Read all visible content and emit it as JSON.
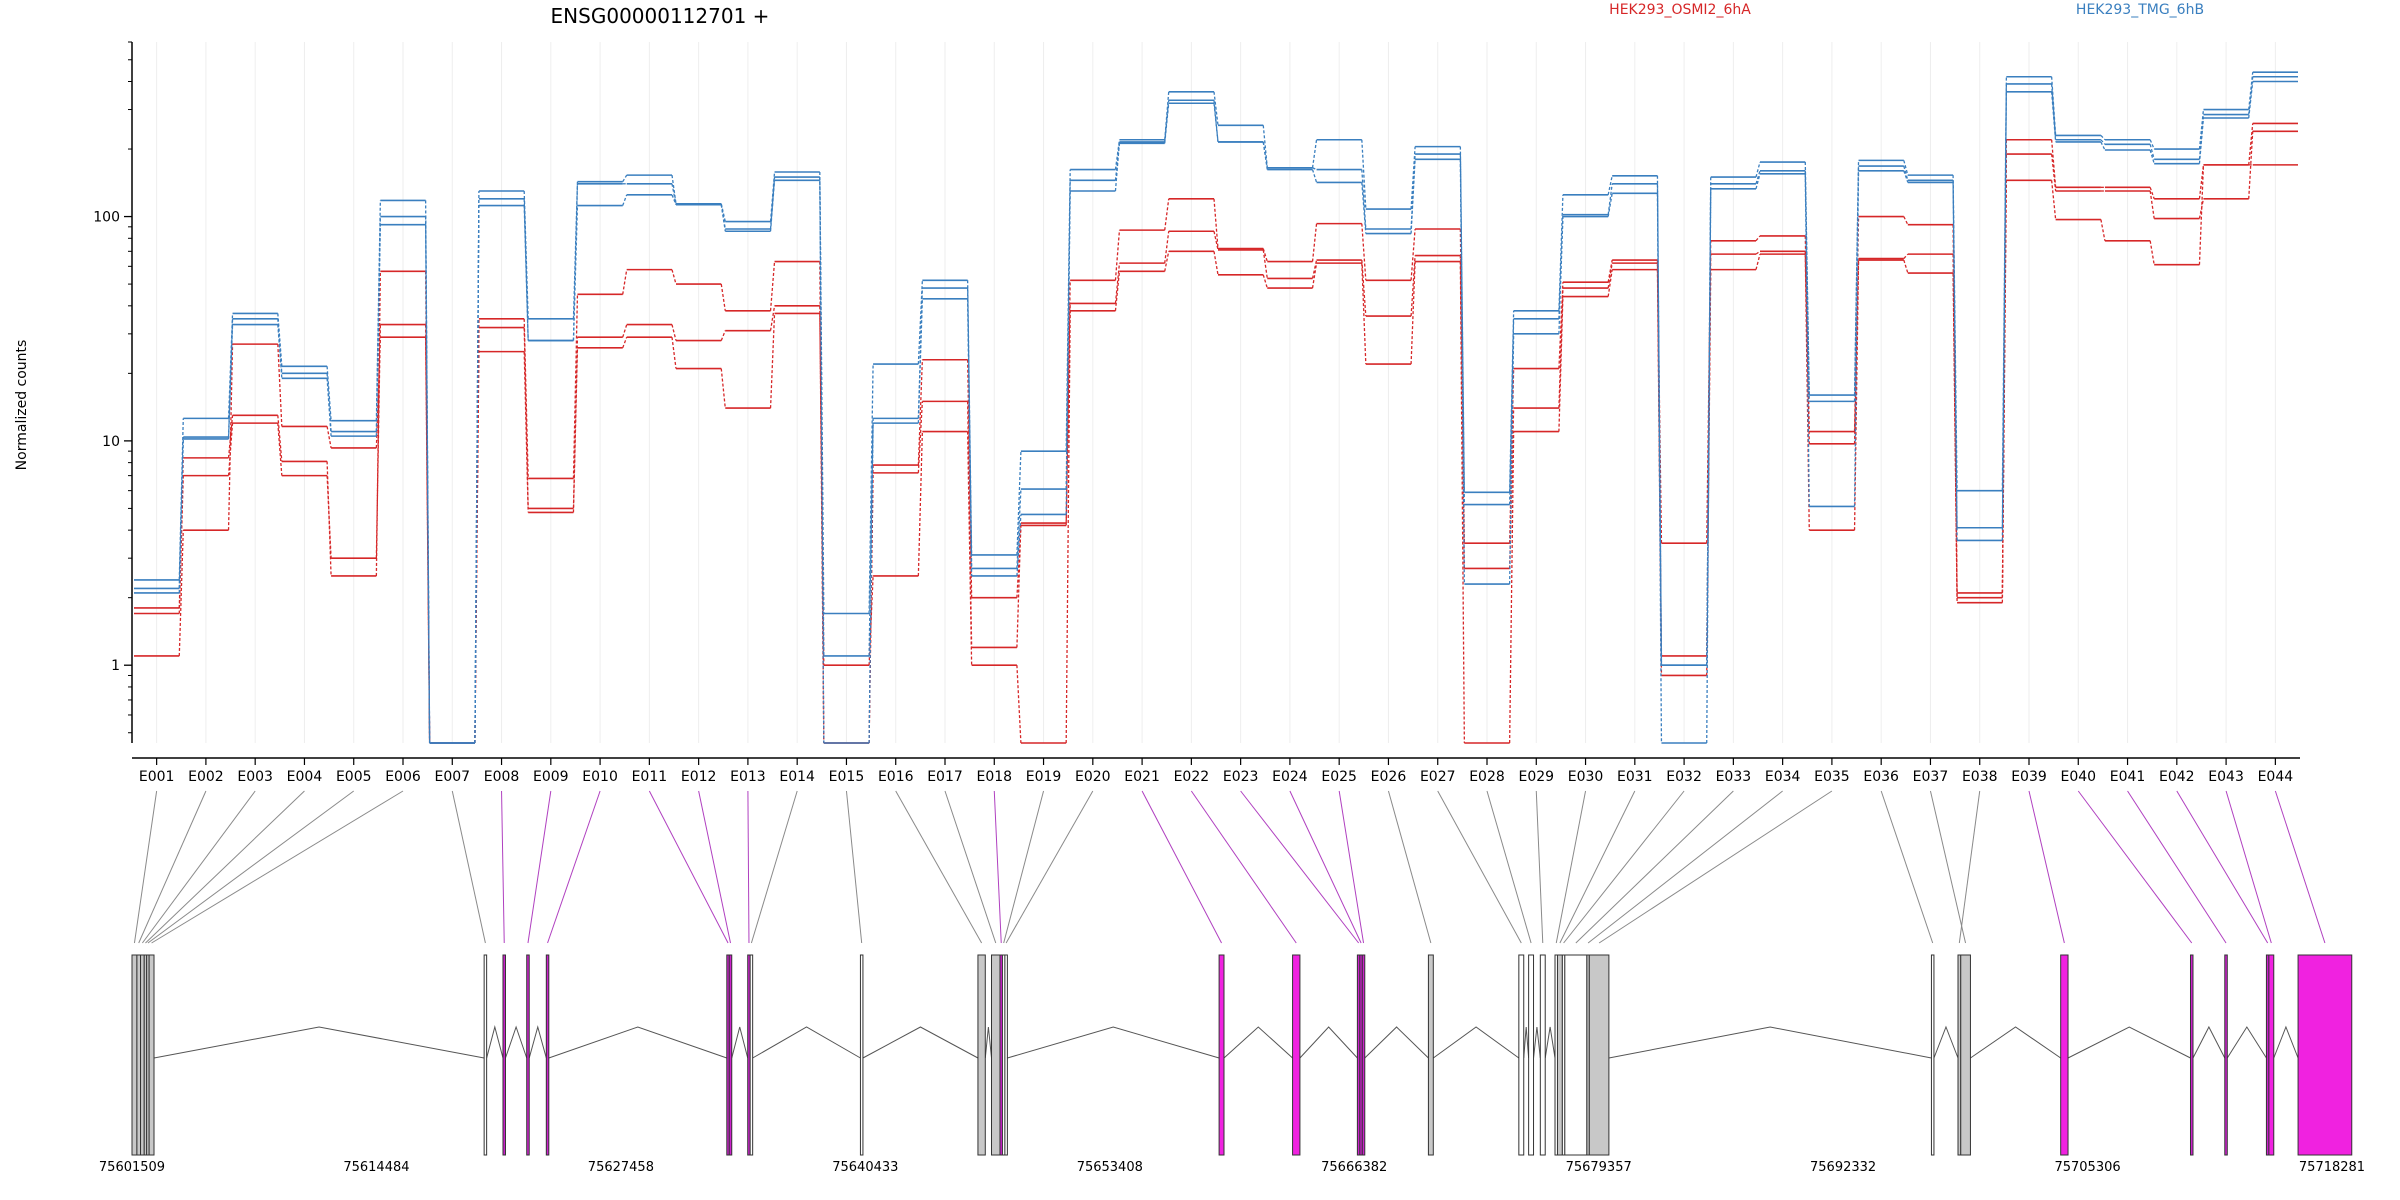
{
  "chart_data": {
    "type": "line",
    "title": "ENSG00000112701 +",
    "ylabel": "Normalized counts",
    "xlabel": "",
    "yscale": "log",
    "ylim": [
      0.45,
      600
    ],
    "yticks": [
      1,
      10,
      100
    ],
    "ytick_labels": [
      "1",
      "10",
      "100"
    ],
    "grid": "vertical",
    "legend": "top",
    "exons": [
      "E001",
      "E002",
      "E003",
      "E004",
      "E005",
      "E006",
      "E007",
      "E008",
      "E009",
      "E010",
      "E011",
      "E012",
      "E013",
      "E014",
      "E015",
      "E016",
      "E017",
      "E018",
      "E019",
      "E020",
      "E021",
      "E022",
      "E023",
      "E024",
      "E025",
      "E026",
      "E027",
      "E028",
      "E029",
      "E030",
      "E031",
      "E032",
      "E033",
      "E034",
      "E035",
      "E036",
      "E037",
      "E038",
      "E039",
      "E040",
      "E041",
      "E042",
      "E043",
      "E044"
    ],
    "series": [
      {
        "name": "HEK293_OSMI2_6hA",
        "color": "#d62728",
        "replicates": [
          [
            1.8,
            8.4,
            13,
            8.1,
            2.5,
            57,
            0.45,
            35,
            6.8,
            45,
            58,
            50,
            38,
            63,
            0.45,
            7.8,
            23,
            2,
            4.2,
            52,
            87,
            120,
            72,
            63,
            93,
            52,
            88,
            3.5,
            21,
            51,
            64,
            3.5,
            78,
            82,
            11,
            100,
            92,
            2.1,
            220,
            135,
            135,
            120,
            170,
            260
          ],
          [
            1.7,
            7,
            12,
            7,
            3,
            33,
            0.45,
            32,
            5,
            29,
            33,
            28,
            31,
            40,
            0.45,
            7.2,
            15,
            1.2,
            4.3,
            41,
            62,
            86,
            71,
            53,
            64,
            36,
            67,
            2.7,
            14,
            48,
            62,
            1.1,
            68,
            70,
            9.7,
            65,
            68,
            2,
            190,
            130,
            130,
            98,
            120,
            240
          ],
          [
            1.1,
            4,
            27,
            11.6,
            9.3,
            29,
            0.45,
            25,
            4.8,
            26,
            29,
            21,
            14,
            37,
            1,
            2.5,
            11,
            1,
            0.45,
            38,
            57,
            70,
            55,
            48,
            62,
            22,
            63,
            0.45,
            11,
            44,
            58,
            0.9,
            58,
            68,
            4,
            64,
            56,
            1.9,
            145,
            97,
            78,
            61,
            170,
            170
          ]
        ]
      },
      {
        "name": "HEK293_TMG_6hB",
        "color": "#3a7fbf",
        "replicates": [
          [
            2.4,
            12.6,
            37,
            21.5,
            12.3,
            118,
            0.45,
            130,
            35,
            143,
            153,
            114,
            95,
            158,
            1.7,
            22,
            52,
            3.1,
            9,
            162,
            220,
            360,
            255,
            165,
            220,
            108,
            205,
            5.9,
            38,
            125,
            152,
            1,
            150,
            175,
            16,
            178,
            153,
            6,
            420,
            230,
            220,
            200,
            300,
            440
          ],
          [
            2.2,
            10.4,
            35,
            20,
            11,
            100,
            0.45,
            120,
            28,
            140,
            140,
            113,
            88,
            150,
            1.1,
            12.6,
            48,
            2.7,
            6.1,
            130,
            215,
            330,
            215,
            165,
            162,
            88,
            190,
            5.2,
            35,
            102,
            140,
            1,
            140,
            160,
            15,
            168,
            145,
            4.1,
            390,
            220,
            210,
            180,
            285,
            420
          ],
          [
            2.1,
            10.2,
            33,
            19,
            10.5,
            92,
            0.45,
            112,
            28,
            112,
            125,
            113,
            86,
            145,
            0.45,
            12,
            43,
            2.5,
            4.7,
            145,
            212,
            320,
            215,
            162,
            142,
            84,
            180,
            2.3,
            30,
            100,
            127,
            0.45,
            133,
            155,
            5.1,
            160,
            142,
            3.6,
            360,
            215,
            198,
            172,
            275,
            400
          ]
        ]
      }
    ],
    "gene_coords_labels": [
      "75601509",
      "75614484",
      "75627458",
      "75640433",
      "75653408",
      "75666382",
      "75679357",
      "75692332",
      "75705306",
      "75718281"
    ],
    "gene_coords_range": [
      75601509,
      75718281
    ],
    "exon_genomic": [
      {
        "s": 75601509,
        "e": 75601769,
        "c": "#c8c8c8"
      },
      {
        "s": 75601769,
        "e": 75601963,
        "c": "#c8c8c8"
      },
      {
        "s": 75601963,
        "e": 75602158,
        "c": "#c8c8c8"
      },
      {
        "s": 75602158,
        "e": 75602287,
        "c": "#c8c8c8"
      },
      {
        "s": 75602287,
        "e": 75602417,
        "c": "#c8c8c8"
      },
      {
        "s": 75602417,
        "e": 75602677,
        "c": "#c8c8c8"
      },
      {
        "s": 75620200,
        "e": 75620330,
        "c": "#ffffff"
      },
      {
        "s": 75621200,
        "e": 75621330,
        "c": "#cc22cc"
      },
      {
        "s": 75622460,
        "e": 75622590,
        "c": "#cc22cc"
      },
      {
        "s": 75623500,
        "e": 75623630,
        "c": "#cc22cc"
      },
      {
        "s": 75633080,
        "e": 75633210,
        "c": "#cc22cc"
      },
      {
        "s": 75633210,
        "e": 75633340,
        "c": "#cc22cc"
      },
      {
        "s": 75634190,
        "e": 75634320,
        "c": "#cc22cc"
      },
      {
        "s": 75634320,
        "e": 75634450,
        "c": "#ffffff"
      },
      {
        "s": 75640173,
        "e": 75640303,
        "c": "#ffffff"
      },
      {
        "s": 75646410,
        "e": 75646800,
        "c": "#c8c8c8"
      },
      {
        "s": 75647130,
        "e": 75647580,
        "c": "#c8c8c8"
      },
      {
        "s": 75647580,
        "e": 75647710,
        "c": "#cc22cc"
      },
      {
        "s": 75647710,
        "e": 75647840,
        "c": "#ffffff"
      },
      {
        "s": 75647840,
        "e": 75647970,
        "c": "#ffffff"
      },
      {
        "s": 75659210,
        "e": 75659470,
        "c": "#f022e0"
      },
      {
        "s": 75663110,
        "e": 75663500,
        "c": "#f022e0"
      },
      {
        "s": 75666550,
        "e": 75666680,
        "c": "#cc22cc"
      },
      {
        "s": 75666680,
        "e": 75666810,
        "c": "#cc22cc"
      },
      {
        "s": 75666810,
        "e": 75666940,
        "c": "#cc22cc"
      },
      {
        "s": 75670320,
        "e": 75670580,
        "c": "#c8c8c8"
      },
      {
        "s": 75675120,
        "e": 75675380,
        "c": "#ffffff"
      },
      {
        "s": 75675640,
        "e": 75675900,
        "c": "#ffffff"
      },
      {
        "s": 75676260,
        "e": 75676520,
        "c": "#ffffff"
      },
      {
        "s": 75677040,
        "e": 75677170,
        "c": "#ffffff"
      },
      {
        "s": 75677170,
        "e": 75677430,
        "c": "#c8c8c8"
      },
      {
        "s": 75677430,
        "e": 75677560,
        "c": "#ffffff"
      },
      {
        "s": 75677560,
        "e": 75678730,
        "c": "#ffffff"
      },
      {
        "s": 75678730,
        "e": 75678860,
        "c": "#c8c8c8"
      },
      {
        "s": 75678860,
        "e": 75679900,
        "c": "#c8c8c8"
      },
      {
        "s": 75697020,
        "e": 75697150,
        "c": "#ffffff"
      },
      {
        "s": 75698570,
        "e": 75699090,
        "c": "#c8c8c8"
      },
      {
        "s": 75698430,
        "e": 75698570,
        "c": "#c8c8c8"
      },
      {
        "s": 75703880,
        "e": 75704270,
        "c": "#f022e0"
      },
      {
        "s": 75710770,
        "e": 75710900,
        "c": "#cc22cc"
      },
      {
        "s": 75712590,
        "e": 75712720,
        "c": "#cc22cc"
      },
      {
        "s": 75714800,
        "e": 75714930,
        "c": "#cc22cc"
      },
      {
        "s": 75714930,
        "e": 75715190,
        "c": "#f022e0"
      },
      {
        "s": 75716480,
        "e": 75719330,
        "c": "#f022e0"
      }
    ]
  }
}
